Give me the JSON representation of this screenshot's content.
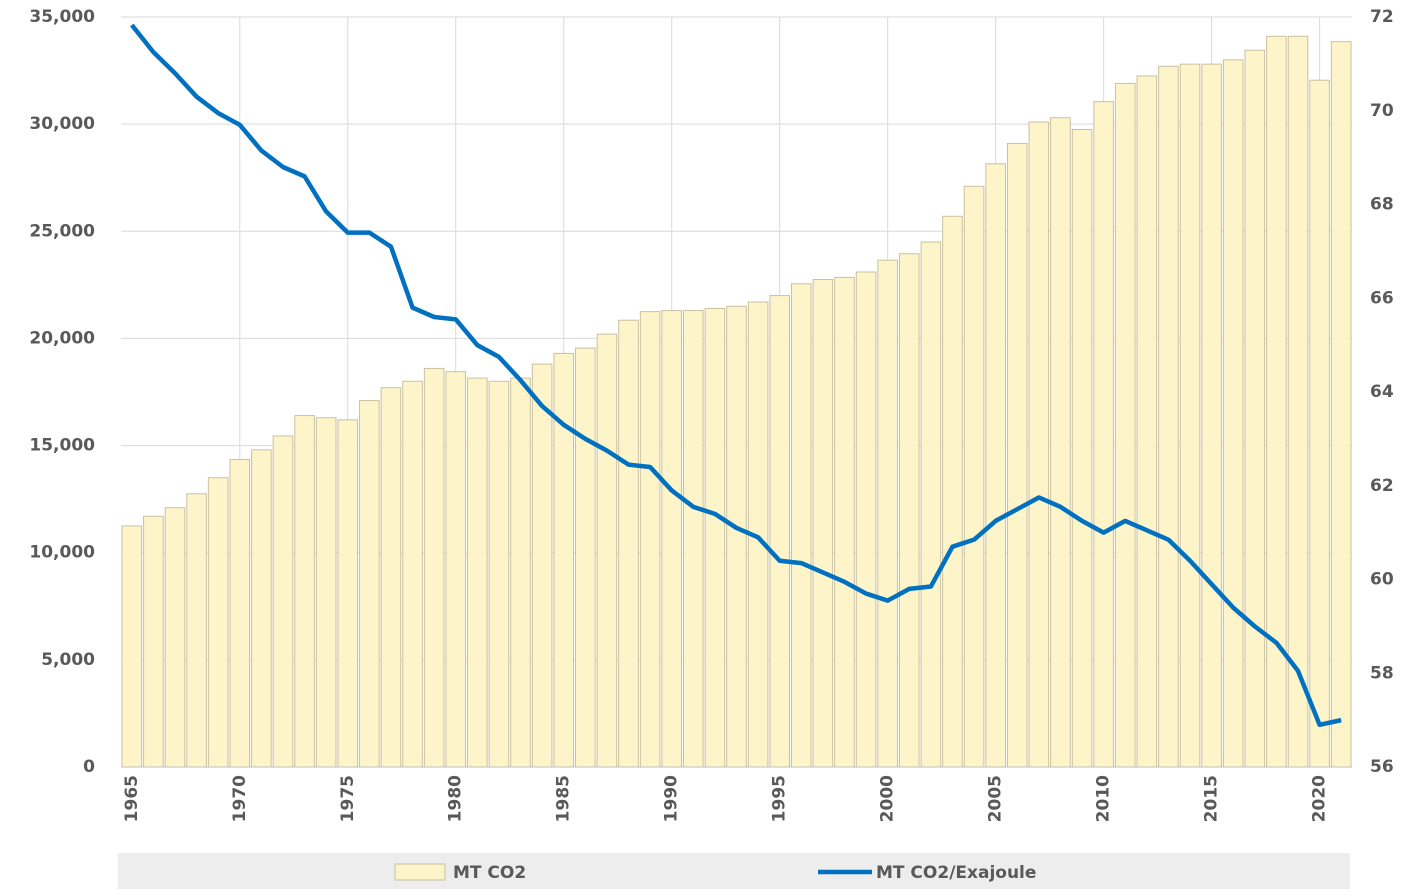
{
  "chart_data": {
    "type": "bar",
    "categories": [
      "1965",
      null,
      null,
      null,
      null,
      "1970",
      null,
      null,
      null,
      null,
      "1975",
      null,
      null,
      null,
      null,
      "1980",
      null,
      null,
      null,
      null,
      "1985",
      null,
      null,
      null,
      null,
      "1990",
      null,
      null,
      null,
      null,
      "1995",
      null,
      null,
      null,
      null,
      "2000",
      null,
      null,
      null,
      null,
      "2005",
      null,
      null,
      null,
      null,
      "2010",
      null,
      null,
      null,
      null,
      "2015",
      null,
      null,
      null,
      null,
      "2020",
      null
    ],
    "series": [
      {
        "name": "MT CO2",
        "type": "bar",
        "color": "#fdf5c9",
        "values": [
          11250,
          11700,
          12100,
          12750,
          13500,
          14350,
          14800,
          15450,
          16400,
          16300,
          16200,
          17100,
          17700,
          18000,
          18600,
          18450,
          18150,
          18000,
          18150,
          18800,
          19300,
          19550,
          20200,
          20850,
          21250,
          21300,
          21300,
          21400,
          21500,
          21700,
          22000,
          22550,
          22750,
          22850,
          23100,
          23650,
          23950,
          24500,
          25700,
          27100,
          28150,
          29100,
          30100,
          30300,
          29750,
          31050,
          31900,
          32250,
          32700,
          32800,
          32800,
          33000,
          33450,
          34100,
          34100,
          32050,
          33850
        ]
      },
      {
        "name": "MT CO2/Exajoule",
        "type": "line",
        "axis": "y2",
        "color": "#0070c0",
        "values": [
          71.83,
          71.25,
          70.8,
          70.3,
          69.95,
          69.7,
          69.15,
          68.8,
          68.6,
          67.85,
          67.4,
          67.4,
          67.1,
          65.8,
          65.6,
          65.55,
          65.0,
          64.75,
          64.25,
          63.7,
          63.3,
          63.0,
          62.75,
          62.45,
          62.4,
          61.9,
          61.55,
          61.4,
          61.1,
          60.9,
          60.4,
          60.35,
          60.15,
          59.95,
          59.7,
          59.55,
          59.8,
          59.85,
          60.7,
          60.85,
          61.25,
          61.5,
          61.75,
          61.55,
          61.25,
          61.0,
          61.25,
          61.05,
          60.85,
          60.4,
          59.9,
          59.4,
          59.0,
          58.65,
          58.05,
          56.9,
          57.0
        ]
      }
    ],
    "ylim": [
      0,
      35000
    ],
    "yticks": [
      0,
      {
        "value": 5000,
        "label": "5,000"
      },
      {
        "value": 10000,
        "label": "10,000"
      },
      {
        "value": 15000,
        "label": "15,000"
      },
      {
        "value": 20000,
        "label": "20,000"
      },
      {
        "value": 25000,
        "label": "25,000"
      },
      {
        "value": 30000,
        "label": "30,000"
      },
      {
        "value": 35000,
        "label": "35,000"
      }
    ],
    "y2lim": [
      56,
      72
    ],
    "y2ticks": [
      56,
      58,
      60,
      62,
      64,
      66,
      68,
      70,
      72
    ],
    "grid": true,
    "legend": "bottom"
  }
}
